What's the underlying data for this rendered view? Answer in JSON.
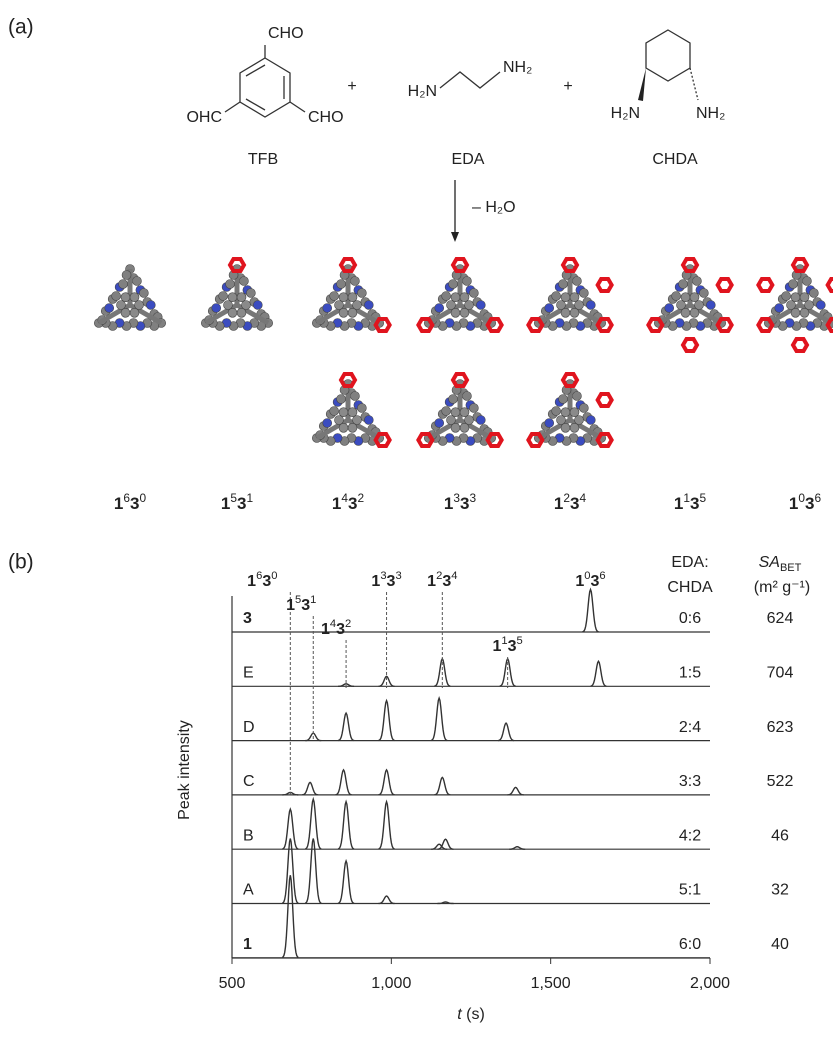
{
  "panel_a": {
    "label": "(a)",
    "reactants": [
      {
        "name": "TFB",
        "groups": [
          "CHO",
          "OHC",
          "CHO"
        ]
      },
      {
        "name": "EDA",
        "groups": [
          "H₂N",
          "NH₂"
        ]
      },
      {
        "name": "CHDA",
        "groups": [
          "H₂N",
          "NH₂"
        ]
      }
    ],
    "plus": "+",
    "condition": "– H₂O",
    "cages": [
      [
        [
          "1",
          "6"
        ],
        [
          "3",
          "0"
        ]
      ],
      [
        [
          "1",
          "5"
        ],
        [
          "3",
          "1"
        ]
      ],
      [
        [
          "1",
          "4"
        ],
        [
          "3",
          "2"
        ]
      ],
      [
        [
          "1",
          "3"
        ],
        [
          "3",
          "3"
        ]
      ],
      [
        [
          "1",
          "2"
        ],
        [
          "3",
          "4"
        ]
      ],
      [
        [
          "1",
          "1"
        ],
        [
          "3",
          "5"
        ]
      ],
      [
        [
          "1",
          "0"
        ],
        [
          "3",
          "6"
        ]
      ]
    ]
  },
  "chart_data": {
    "type": "line",
    "panel_label": "(b)",
    "xlabel": {
      "var": "t",
      "unit": "(s)"
    },
    "ylabel": "Peak intensity",
    "xlim": [
      500,
      2000
    ],
    "xticks": [
      500,
      {
        "value": 1000,
        "label": "1,000"
      },
      {
        "value": 1500,
        "label": "1,500"
      },
      {
        "value": 2000,
        "label": "2,000"
      }
    ],
    "column_headers": {
      "ratio": [
        "EDA:",
        "CHDA"
      ],
      "sa": {
        "main": "SA",
        "sub": "BET",
        "unit": "(m² g⁻¹)"
      }
    },
    "series": [
      {
        "name": "3",
        "ratio": "0:6",
        "sa_bet": 624,
        "color": "#333333",
        "x": [
          1625
        ],
        "values": [
          0.85
        ]
      },
      {
        "name": "E",
        "ratio": "1:5",
        "sa_bet": 704,
        "color": "#333333",
        "x": [
          858,
          985,
          1160,
          1365,
          1650
        ],
        "values": [
          0.05,
          0.2,
          0.55,
          0.55,
          0.5
        ]
      },
      {
        "name": "D",
        "ratio": "2:4",
        "sa_bet": 623,
        "color": "#333333",
        "x": [
          755,
          858,
          985,
          1150,
          1360
        ],
        "values": [
          0.15,
          0.55,
          0.8,
          0.85,
          0.35
        ]
      },
      {
        "name": "C",
        "ratio": "3:3",
        "sa_bet": 522,
        "color": "#333333",
        "x": [
          683,
          745,
          850,
          985,
          1160,
          1390
        ],
        "values": [
          0.05,
          0.25,
          0.5,
          0.5,
          0.35,
          0.15
        ]
      },
      {
        "name": "B",
        "ratio": "4:2",
        "sa_bet": 46,
        "color": "#333333",
        "x": [
          683,
          755,
          858,
          985,
          1150,
          1170,
          1395
        ],
        "values": [
          0.8,
          1.0,
          0.95,
          0.95,
          0.1,
          0.2,
          0.05
        ]
      },
      {
        "name": "A",
        "ratio": "5:1",
        "sa_bet": 32,
        "color": "#333333",
        "x": [
          683,
          755,
          858,
          985,
          1170
        ],
        "values": [
          1.3,
          1.3,
          0.85,
          0.15,
          0.03
        ]
      },
      {
        "name": "1",
        "ratio": "6:0",
        "sa_bet": 40,
        "color": "#333333",
        "x": [
          683
        ],
        "values": [
          1.65
        ]
      }
    ],
    "annotations": [
      {
        "label": [
          [
            "1",
            "6"
          ],
          [
            "3",
            "0"
          ]
        ],
        "t": 683
      },
      {
        "label": [
          [
            "1",
            "5"
          ],
          [
            "3",
            "1"
          ]
        ],
        "t": 755
      },
      {
        "label": [
          [
            "1",
            "4"
          ],
          [
            "3",
            "2"
          ]
        ],
        "t": 858
      },
      {
        "label": [
          [
            "1",
            "3"
          ],
          [
            "3",
            "3"
          ]
        ],
        "t": 985
      },
      {
        "label": [
          [
            "1",
            "2"
          ],
          [
            "3",
            "4"
          ]
        ],
        "t": 1160
      },
      {
        "label": [
          [
            "1",
            "1"
          ],
          [
            "3",
            "5"
          ]
        ],
        "t": 1365
      },
      {
        "label": [
          [
            "1",
            "0"
          ],
          [
            "3",
            "6"
          ]
        ],
        "t": 1625
      }
    ]
  }
}
